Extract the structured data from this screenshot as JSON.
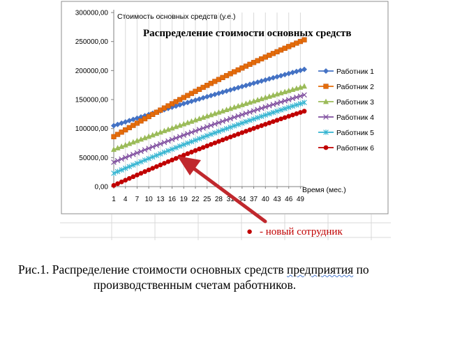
{
  "chart_data": {
    "type": "line",
    "title": "Распределение стоимости основных средств",
    "ylabel": "Стоимость основных средств (у.е.)",
    "xlabel": "Время (мес.)",
    "ylim": [
      0,
      300000
    ],
    "yticks": [
      "0,00",
      "50000,00",
      "100000,00",
      "150000,00",
      "200000,00",
      "250000,00",
      "300000,00"
    ],
    "yticks_values": [
      0,
      50000,
      100000,
      150000,
      200000,
      250000,
      300000
    ],
    "x_range": [
      1,
      50
    ],
    "xticks": [
      "1",
      "4",
      "7",
      "10",
      "13",
      "16",
      "19",
      "22",
      "25",
      "28",
      "31",
      "34",
      "37",
      "40",
      "43",
      "46",
      "49"
    ],
    "grid": "vertical",
    "legend_position": "right",
    "series": [
      {
        "name": "Работник 1",
        "color": "#4472c4",
        "marker": "diamond",
        "start": 105000,
        "end": 202000,
        "curve": 0.1
      },
      {
        "name": "Работник 2",
        "color": "#e46c0a",
        "marker": "square",
        "start": 86000,
        "end": 253000,
        "curve": 0.16
      },
      {
        "name": "Работник 3",
        "color": "#9bbb59",
        "marker": "triangle",
        "start": 64000,
        "end": 173000,
        "curve": 0.15
      },
      {
        "name": "Работник 4",
        "color": "#7f4e9f",
        "marker": "x",
        "start": 42000,
        "end": 158000,
        "curve": 0.15
      },
      {
        "name": "Работник 5",
        "color": "#31b3d0",
        "marker": "star",
        "start": 23000,
        "end": 145000,
        "curve": 0.16
      },
      {
        "name": "Работник 6",
        "color": "#c00000",
        "marker": "circle",
        "start": 2000,
        "end": 130000,
        "curve": 0.17
      }
    ],
    "annotation": {
      "marker": "●",
      "text": "- новый сотрудник",
      "color": "#c00000"
    }
  },
  "caption": {
    "line1_pre": "Рис.1. Распределение стоимости основных средств ",
    "line1_squiggle": "предприятия",
    "line1_post": " по",
    "line2": "производственным счетам работников."
  }
}
